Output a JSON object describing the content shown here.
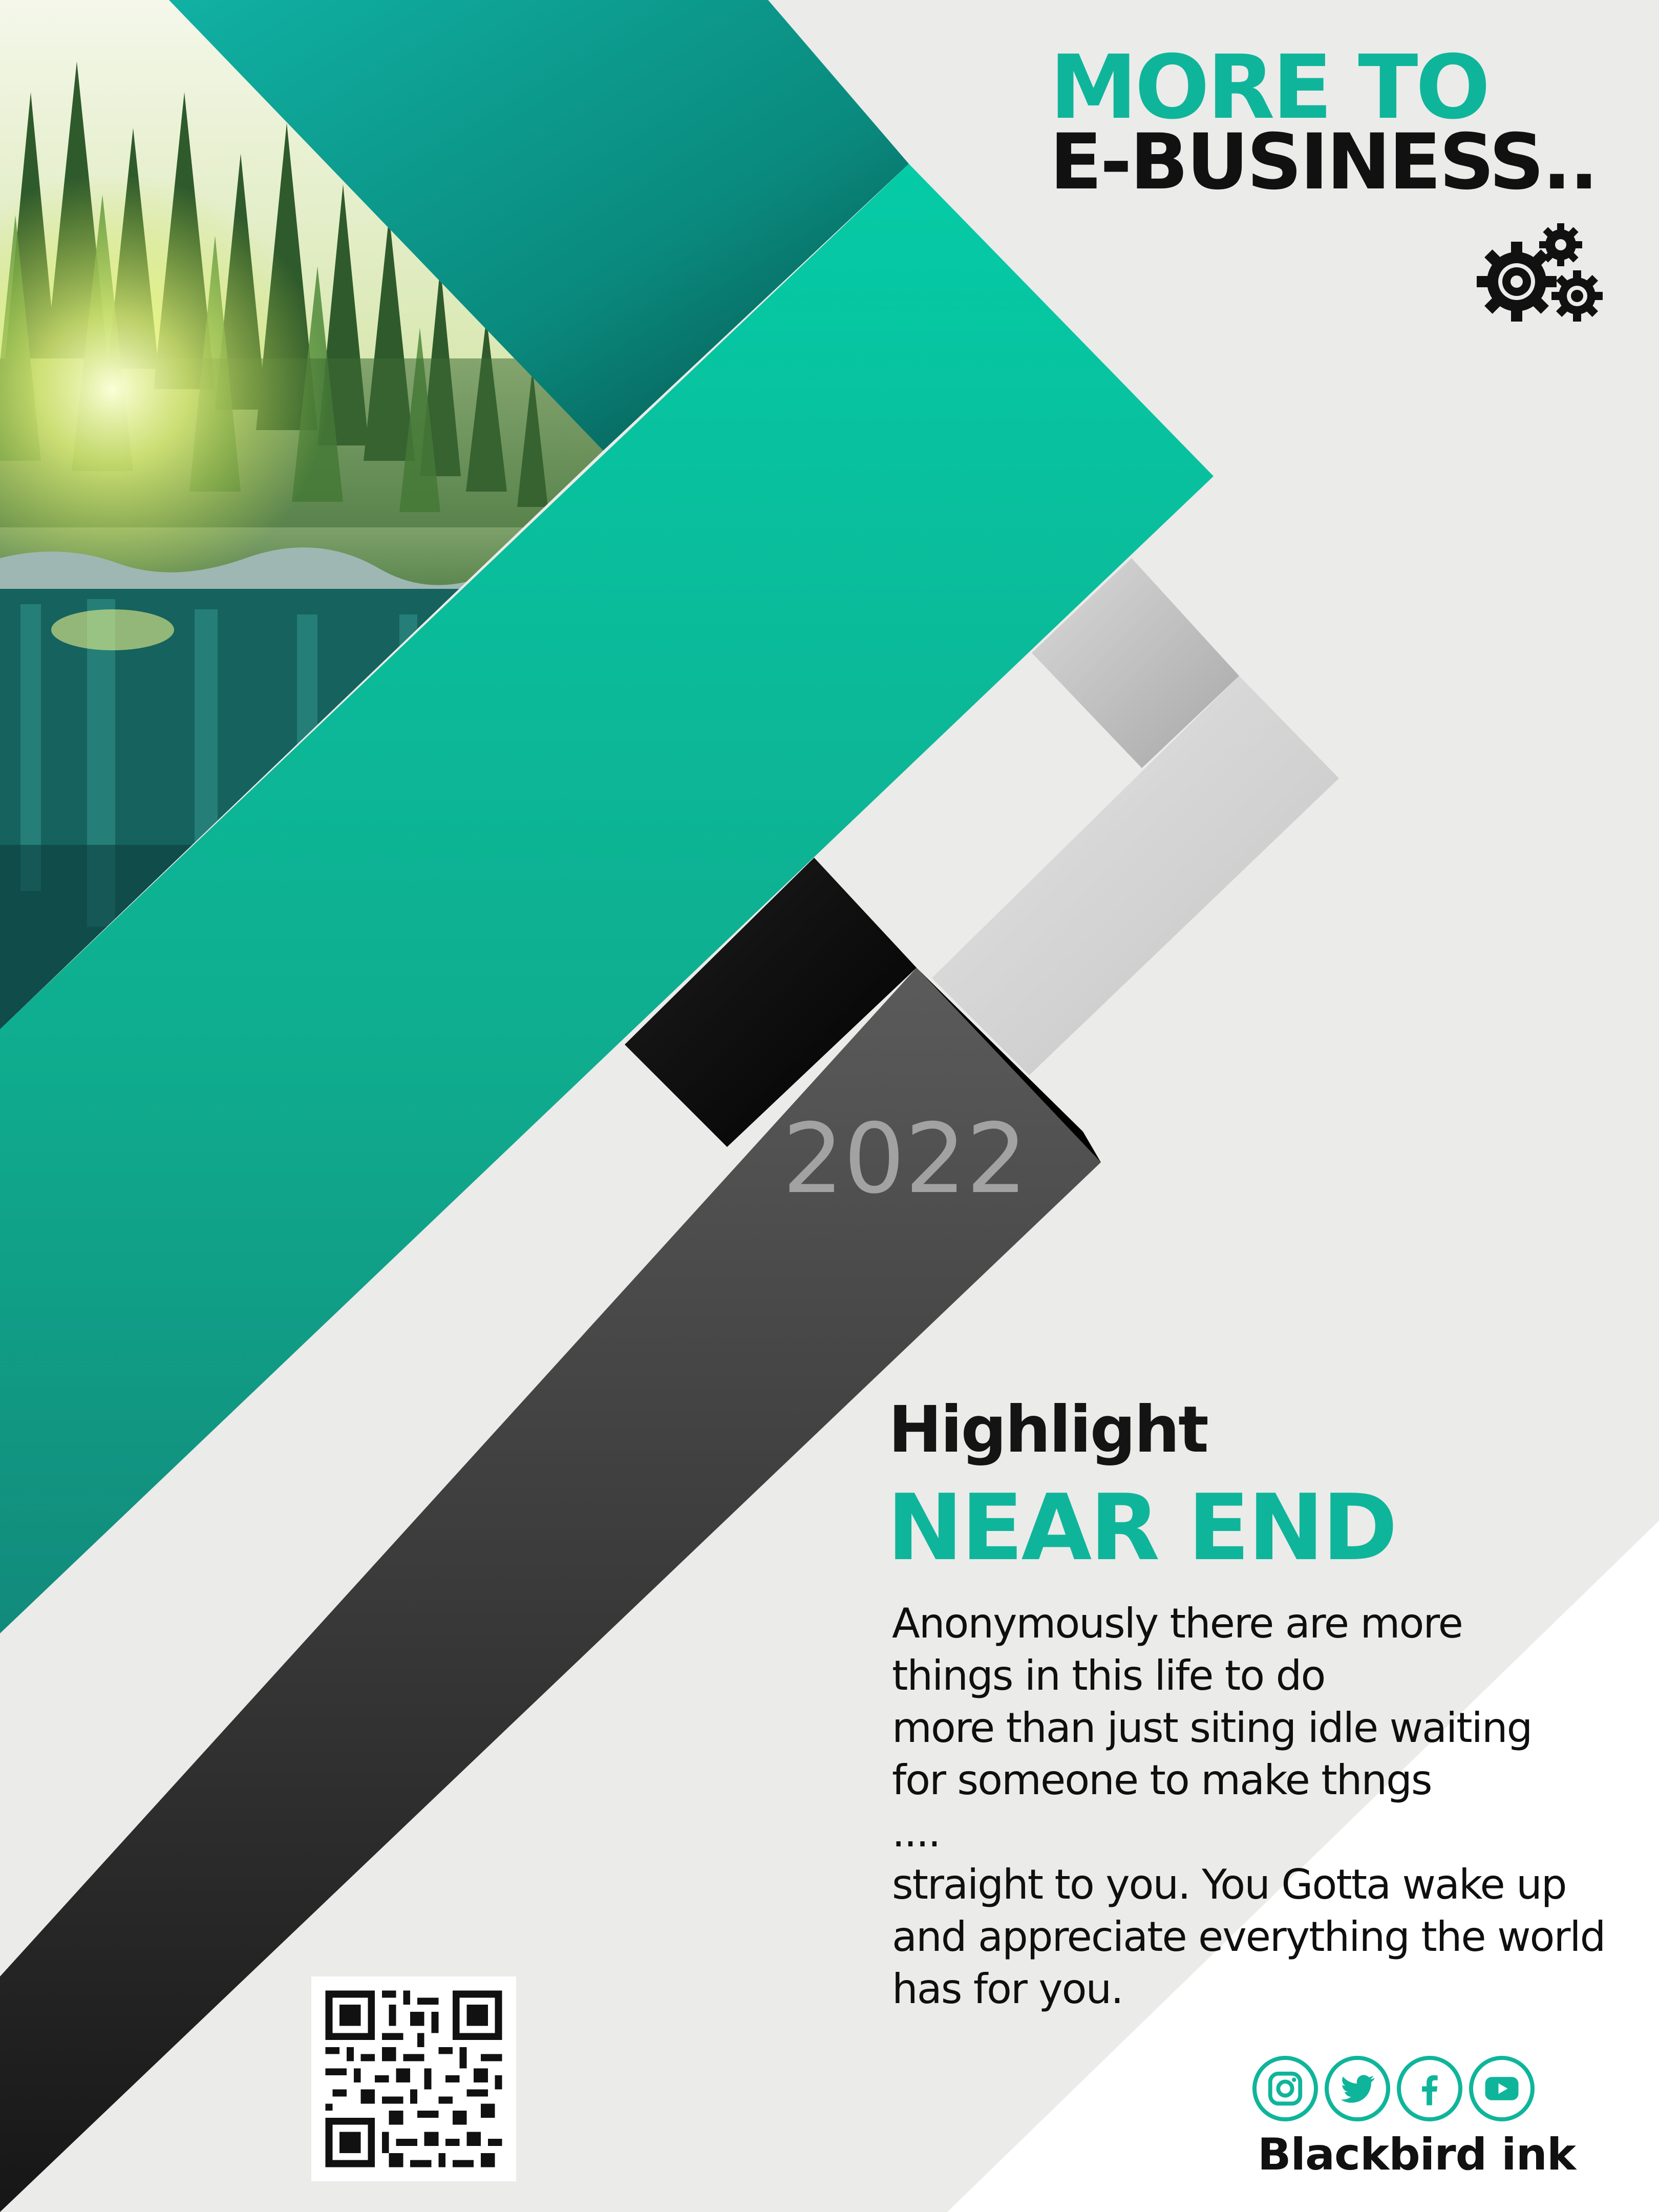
{
  "colors": {
    "accent": "#0fb59a",
    "teal_bright": "#05c9a3",
    "teal_dark": "#0a7a6e",
    "background": "#ebebe9",
    "dark_band": "#2b2b2b",
    "grey_band": "#cfcfcf",
    "text_dark": "#111111",
    "year_text": "#a2a2a2"
  },
  "header": {
    "line1": "MORE TO",
    "line2": "E-BUSINESS..",
    "icon": "gears-icon"
  },
  "year": "2022",
  "highlight": {
    "kicker": "Highlight",
    "headline": "NEAR END",
    "body_lines": [
      "Anonymously there are more",
      "things in this life to do",
      "more than just siting idle waiting",
      "for someone to make thngs",
      "....",
      "straight to you. You Gotta wake up",
      "and appreciate everything the world",
      "has for you."
    ]
  },
  "footer": {
    "qr_icon": "qr-code",
    "social": [
      {
        "name": "instagram-icon"
      },
      {
        "name": "twitter-icon"
      },
      {
        "name": "facebook-icon"
      },
      {
        "name": "youtube-icon"
      }
    ],
    "brand": "Blackbird ink"
  }
}
